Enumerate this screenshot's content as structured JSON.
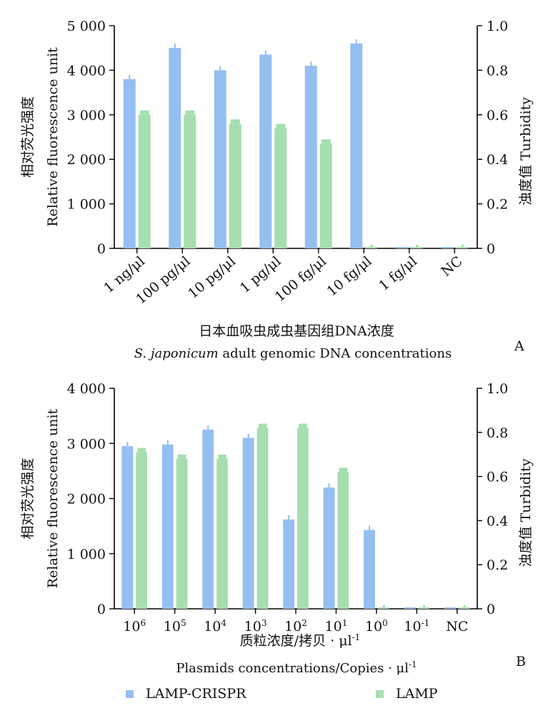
{
  "colors": {
    "lamp_crispr": "#94bff0",
    "lamp": "#a6deb0",
    "axis": "#000000"
  },
  "legend": [
    {
      "label": "LAMP-CRISPR",
      "color": "#94bff0"
    },
    {
      "label": "LAMP",
      "color": "#a6deb0"
    }
  ],
  "chart_data": [
    {
      "type": "bar",
      "panel_label": "A",
      "categories": [
        "1 ng/μl",
        "100 pg/μl",
        "10 pg/μl",
        "1 pg/μl",
        "100 fg/μl",
        "10 fg/μl",
        "1 fg/μl",
        "NC"
      ],
      "series": [
        {
          "name": "LAMP-CRISPR",
          "axis": "left",
          "values": [
            3800,
            4500,
            4000,
            4350,
            4100,
            4600,
            0,
            0
          ]
        },
        {
          "name": "LAMP",
          "axis": "right",
          "values": [
            0.6,
            0.6,
            0.56,
            0.54,
            0.47,
            0,
            0,
            0
          ]
        }
      ],
      "ylabel": [
        "相对荧光强度",
        "Relative fluorescence unit"
      ],
      "y2label": [
        "浊度值",
        "Turbidity"
      ],
      "xlabel": [
        "日本血吸虫成虫基因组DNA浓度",
        "S. japonicum adult genomic DNA concentrations"
      ],
      "ylim": [
        0,
        5000
      ],
      "y2lim": [
        0,
        1.0
      ],
      "yticks": [
        "0",
        "1 000",
        "2 000",
        "3 000",
        "4 000",
        "5 000"
      ],
      "y2ticks": [
        "0",
        "0.2",
        "0.4",
        "0.6",
        "0.8",
        "1.0"
      ],
      "rotated_xticks": true
    },
    {
      "type": "bar",
      "panel_label": "B",
      "categories": [
        "10^6",
        "10^5",
        "10^4",
        "10^3",
        "10^2",
        "10^1",
        "10^0",
        "10^-1",
        "NC"
      ],
      "series": [
        {
          "name": "LAMP-CRISPR",
          "axis": "left",
          "values": [
            2950,
            2980,
            3250,
            3100,
            1620,
            2200,
            1430,
            0,
            0
          ]
        },
        {
          "name": "LAMP",
          "axis": "right",
          "values": [
            0.71,
            0.68,
            0.68,
            0.82,
            0.82,
            0.62,
            0,
            0,
            0
          ]
        }
      ],
      "ylabel": [
        "相对荧光强度",
        "Relative fluorescence unit"
      ],
      "y2label": [
        "浊度值",
        "Turbidity"
      ],
      "xlabel": [
        "质粒浓度/拷贝 · μl^-1",
        "Plasmids concentrations/Copies · μl^-1"
      ],
      "ylim": [
        0,
        4000
      ],
      "y2lim": [
        0,
        1.0
      ],
      "yticks": [
        "0",
        "1 000",
        "2 000",
        "3 000",
        "4 000"
      ],
      "y2ticks": [
        "0",
        "0.2",
        "0.4",
        "0.6",
        "0.8",
        "1.0"
      ],
      "rotated_xticks": false
    }
  ]
}
